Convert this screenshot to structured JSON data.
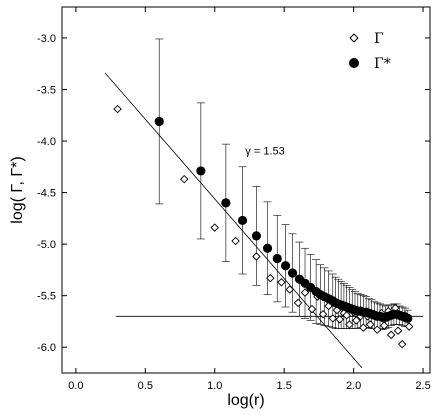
{
  "chart_data": {
    "type": "scatter",
    "xlabel": "log(r)",
    "ylabel": "log( Γ, Γ*)",
    "xlim": [
      -0.1,
      2.55
    ],
    "ylim": [
      -6.25,
      -2.7
    ],
    "xticks": [
      0.0,
      0.5,
      1.0,
      1.5,
      2.0,
      2.5
    ],
    "yticks": [
      -3.0,
      -3.5,
      -4.0,
      -4.5,
      -5.0,
      -5.5,
      -6.0
    ],
    "xtick_labels": [
      "0.0",
      "0.5",
      "1.0",
      "1.5",
      "2.0",
      "2.5"
    ],
    "ytick_labels": [
      "-3.0",
      "-3.5",
      "-4.0",
      "-4.5",
      "-5.0",
      "-5.5",
      "-6.0"
    ],
    "legend_position": "top-right",
    "annotation": {
      "text": "γ = 1.53",
      "x": 1.22,
      "y": -4.13
    },
    "colors": {
      "axis": "#000000",
      "marker": "#000000",
      "background": "#ffffff"
    },
    "series": [
      {
        "name": "Γ",
        "marker": "open-diamond",
        "x": [
          0.3,
          0.78,
          1.0,
          1.15,
          1.3,
          1.4,
          1.48,
          1.54,
          1.6,
          1.65,
          1.7,
          1.74,
          1.78,
          1.82,
          1.85,
          1.88,
          1.9,
          1.93,
          1.95,
          1.97,
          2.0,
          2.02,
          2.05,
          2.07,
          2.1,
          2.12,
          2.15,
          2.17,
          2.2,
          2.22,
          2.25,
          2.27,
          2.3,
          2.32,
          2.35,
          2.37,
          2.4
        ],
        "y": [
          -3.69,
          -4.37,
          -4.84,
          -4.97,
          -5.12,
          -5.33,
          -5.37,
          -5.44,
          -5.57,
          -5.47,
          -5.63,
          -5.51,
          -5.68,
          -5.6,
          -5.72,
          -5.64,
          -5.73,
          -5.67,
          -5.69,
          -5.78,
          -5.66,
          -5.74,
          -5.7,
          -5.81,
          -5.7,
          -5.78,
          -5.68,
          -5.83,
          -5.67,
          -5.79,
          -5.65,
          -5.88,
          -5.62,
          -5.84,
          -5.97,
          -5.69,
          -5.8
        ]
      },
      {
        "name": "Γ*",
        "marker": "filled-circle",
        "x": [
          0.6,
          0.9,
          1.08,
          1.2,
          1.3,
          1.38,
          1.45,
          1.51,
          1.56,
          1.61,
          1.65,
          1.69,
          1.73,
          1.76,
          1.79,
          1.82,
          1.85,
          1.87,
          1.89,
          1.91,
          1.93,
          1.95,
          1.97,
          1.99,
          2.01,
          2.03,
          2.05,
          2.07,
          2.09,
          2.11,
          2.13,
          2.15,
          2.17,
          2.19,
          2.21,
          2.23,
          2.25,
          2.27,
          2.29,
          2.31,
          2.33,
          2.35,
          2.37,
          2.39
        ],
        "y": [
          -3.81,
          -4.29,
          -4.6,
          -4.77,
          -4.92,
          -5.04,
          -5.14,
          -5.21,
          -5.28,
          -5.34,
          -5.38,
          -5.42,
          -5.46,
          -5.49,
          -5.51,
          -5.53,
          -5.55,
          -5.57,
          -5.58,
          -5.59,
          -5.6,
          -5.61,
          -5.62,
          -5.63,
          -5.64,
          -5.65,
          -5.65,
          -5.66,
          -5.66,
          -5.67,
          -5.68,
          -5.69,
          -5.7,
          -5.7,
          -5.71,
          -5.71,
          -5.7,
          -5.69,
          -5.68,
          -5.68,
          -5.69,
          -5.7,
          -5.71,
          -5.72
        ],
        "error": [
          0.8,
          0.66,
          0.57,
          0.52,
          0.48,
          0.45,
          0.42,
          0.4,
          0.38,
          0.36,
          0.34,
          0.32,
          0.31,
          0.29,
          0.28,
          0.27,
          0.26,
          0.25,
          0.24,
          0.23,
          0.22,
          0.21,
          0.2,
          0.19,
          0.18,
          0.17,
          0.16,
          0.16,
          0.15,
          0.14,
          0.14,
          0.13,
          0.13,
          0.12,
          0.12,
          0.11,
          0.11,
          0.1,
          0.1,
          0.1,
          0.09,
          0.09,
          0.09,
          0.08
        ]
      }
    ],
    "fit_lines": [
      {
        "x": [
          0.21,
          2.06
        ],
        "y": [
          -3.34,
          -6.2
        ]
      },
      {
        "x": [
          0.29,
          2.5
        ],
        "y": [
          -5.7,
          -5.7
        ]
      }
    ]
  }
}
